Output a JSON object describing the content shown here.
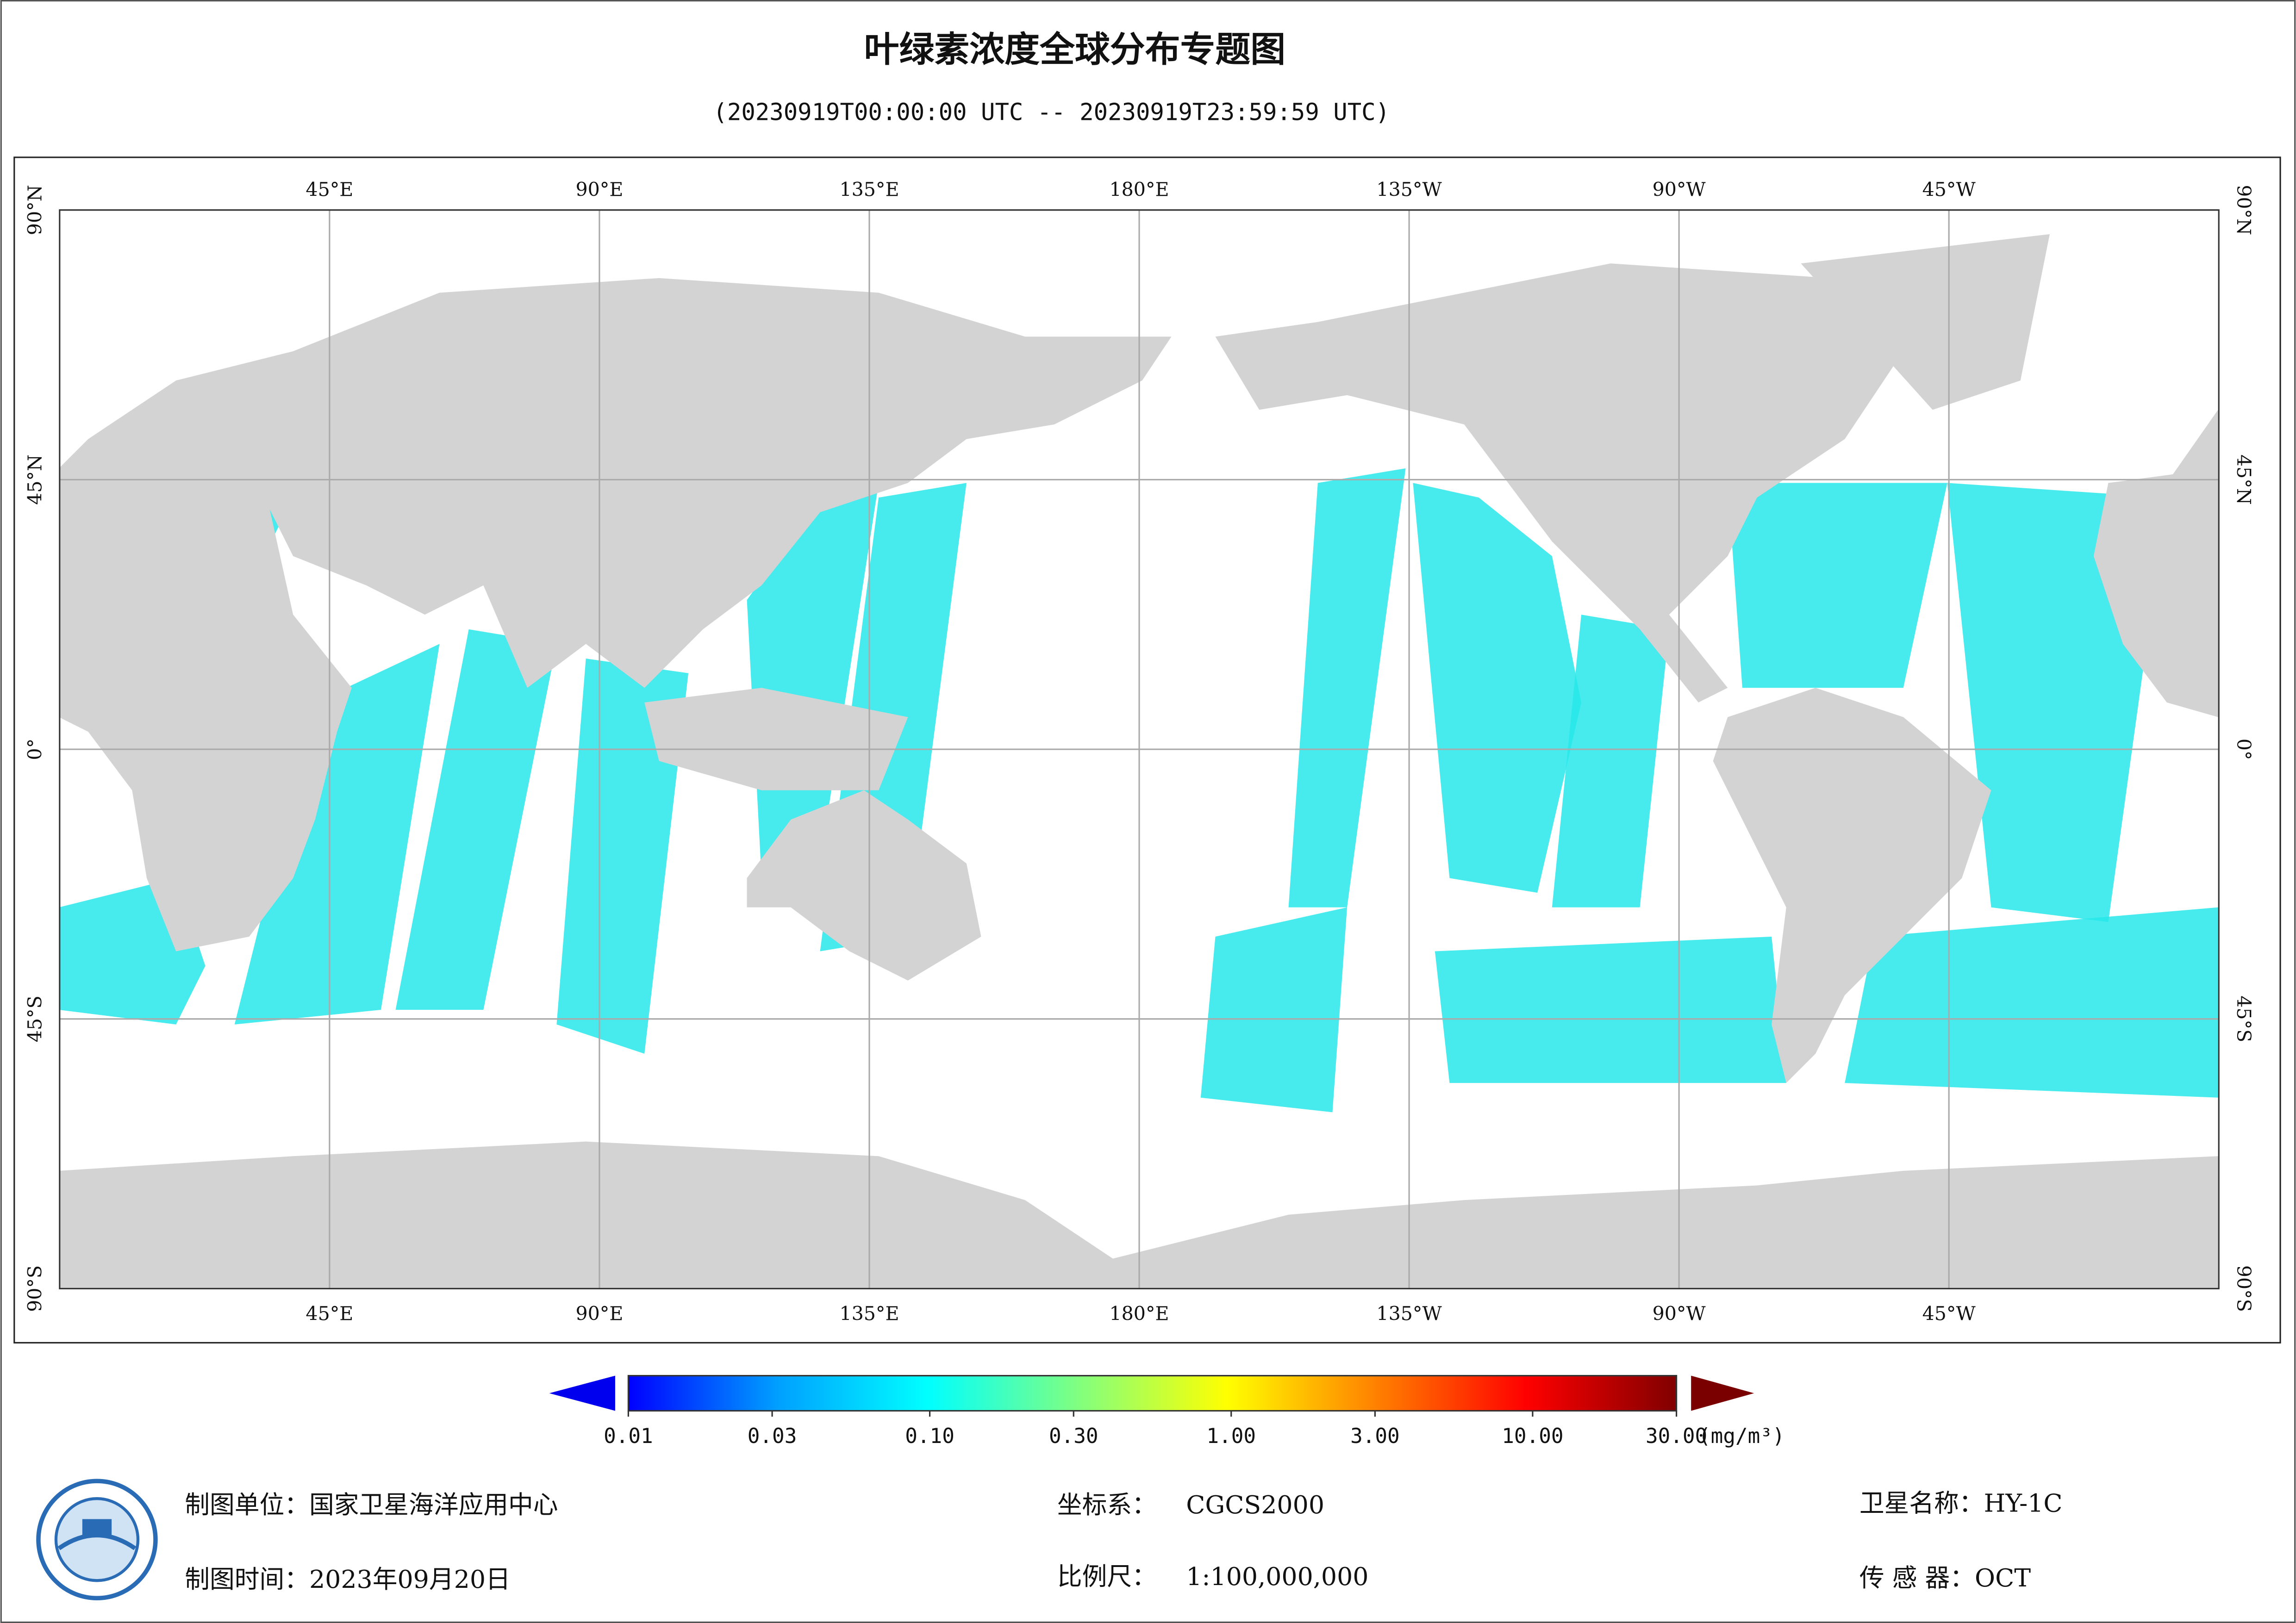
{
  "title": "叶绿素浓度全球分布专题图",
  "subtitle": "(20230919T00:00:00 UTC -- 20230919T23:59:59 UTC)",
  "map": {
    "lon_ticks": [
      {
        "value": 45,
        "label": "45°E"
      },
      {
        "value": 90,
        "label": "90°E"
      },
      {
        "value": 135,
        "label": "135°E"
      },
      {
        "value": 180,
        "label": "180°E"
      },
      {
        "value": -135,
        "label": "135°W"
      },
      {
        "value": -90,
        "label": "90°W"
      },
      {
        "value": -45,
        "label": "45°W"
      }
    ],
    "lat_ticks": [
      {
        "value": 90,
        "label": "90°N"
      },
      {
        "value": 45,
        "label": "45°N"
      },
      {
        "value": 0,
        "label": "0°"
      },
      {
        "value": -45,
        "label": "45°S"
      },
      {
        "value": -90,
        "label": "90°S"
      }
    ]
  },
  "colorbar": {
    "log_scale": true,
    "range": [
      0.01,
      30
    ],
    "colors": [
      "#0000ff",
      "#00a0ff",
      "#00ffff",
      "#80ff80",
      "#ffff00",
      "#ff8000",
      "#ff0000",
      "#800000"
    ],
    "ticks": [
      {
        "value": 0.01,
        "label": "0.01"
      },
      {
        "value": 0.03,
        "label": "0.03"
      },
      {
        "value": 0.1,
        "label": "0.10"
      },
      {
        "value": 0.3,
        "label": "0.30"
      },
      {
        "value": 1,
        "label": "1.00"
      },
      {
        "value": 3,
        "label": "3.00"
      },
      {
        "value": 10,
        "label": "10.00"
      },
      {
        "value": 30,
        "label": "30.00"
      }
    ],
    "unit": "(mg/m³)"
  },
  "footer": {
    "unit": "制图单位：国家卫星海洋应用中心",
    "date": "制图时间：2023年09月20日",
    "crs_label": "坐标系：",
    "crs": "CGCS2000",
    "scale_label": "比例尺：",
    "scale": "1:100,000,000",
    "satellite": "卫星名称：HY-1C",
    "sensor": "传 感 器：OCT"
  }
}
